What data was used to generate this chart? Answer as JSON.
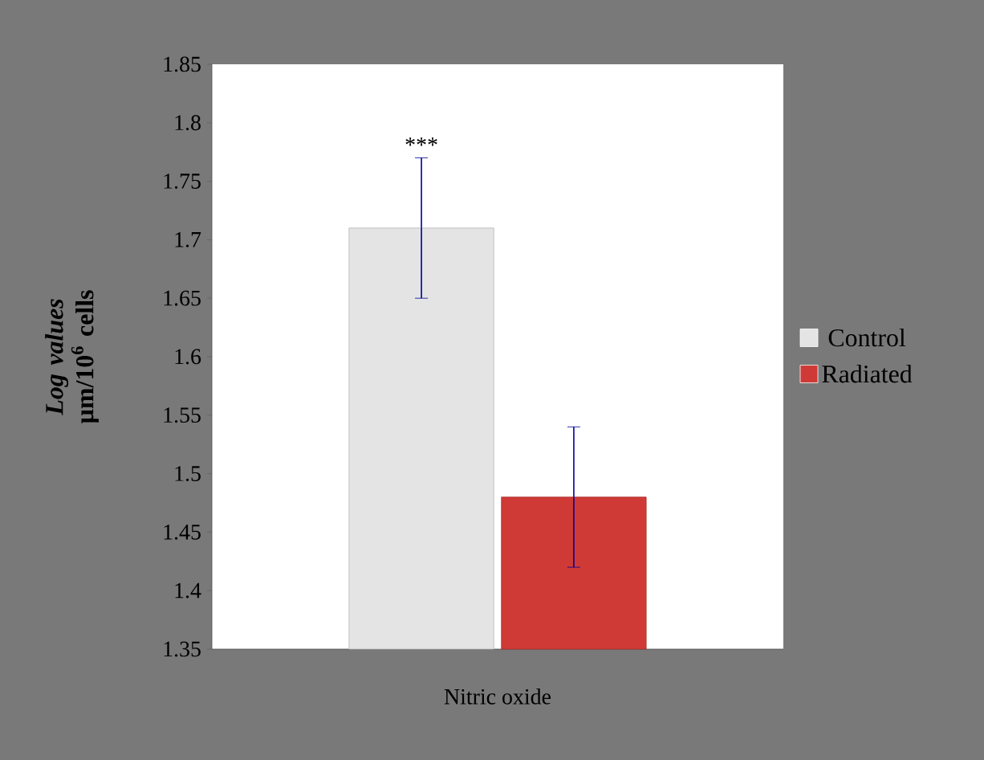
{
  "chart_data": {
    "type": "bar",
    "ylabel": "*Log values* µm/10$^{6}$ cells",
    "categories": [
      "Nitric oxide"
    ],
    "series": [
      {
        "name": "Control",
        "color": "#e4e4e4",
        "values": [
          1.71
        ],
        "errors": [
          0.06
        ]
      },
      {
        "name": "Radiated",
        "color": "#d03a36",
        "values": [
          1.48
        ],
        "errors": [
          0.06
        ]
      }
    ],
    "ylim": [
      1.35,
      1.85
    ],
    "yticks": [
      {
        "value": 1.35,
        "label": "1.35"
      },
      {
        "value": 1.4,
        "label": "1.4"
      },
      {
        "value": 1.45,
        "label": "1.45"
      },
      {
        "value": 1.5,
        "label": "1.5"
      },
      {
        "value": 1.55,
        "label": "1.55"
      },
      {
        "value": 1.6,
        "label": "1.6"
      },
      {
        "value": 1.65,
        "label": "1.65"
      },
      {
        "value": 1.7,
        "label": "1.7"
      },
      {
        "value": 1.75,
        "label": "1.75"
      },
      {
        "value": 1.8,
        "label": "1.8"
      },
      {
        "value": 1.85,
        "label": "1.85"
      }
    ],
    "grid": false,
    "legend": "right",
    "annotations": [
      "***"
    ]
  }
}
